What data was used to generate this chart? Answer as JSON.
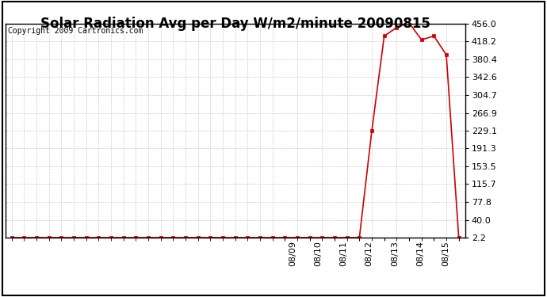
{
  "title": "Solar Radiation Avg per Day W/m2/minute 20090815",
  "copyright": "Copyright 2009 Cartronics.com",
  "background_color": "#ffffff",
  "plot_bg_color": "#ffffff",
  "grid_color": "#cccccc",
  "line_color": "#cc0000",
  "marker_color": "#cc0000",
  "x_values": [
    0,
    1,
    2,
    3,
    4,
    5,
    6,
    7,
    8,
    9,
    10,
    11,
    12,
    13,
    14,
    15,
    16,
    17,
    18,
    19,
    20,
    21,
    22,
    23,
    24,
    25,
    26,
    27,
    28,
    29,
    30,
    31,
    32,
    33,
    34,
    35,
    36
  ],
  "y_values": [
    2.2,
    2.2,
    2.2,
    2.2,
    2.2,
    2.2,
    2.2,
    2.2,
    2.2,
    2.2,
    2.2,
    2.2,
    2.2,
    2.2,
    2.2,
    2.2,
    2.2,
    2.2,
    2.2,
    2.2,
    2.2,
    2.2,
    2.2,
    2.2,
    2.2,
    2.2,
    2.2,
    2.2,
    2.2,
    229.1,
    430.0,
    448.0,
    458.0,
    422.0,
    430.0,
    390.0,
    2.2
  ],
  "n_points": 37,
  "date_tick_positions": [
    22,
    24,
    26,
    28,
    30,
    32,
    34,
    36
  ],
  "date_tick_labels": [
    "08/09",
    "08/10",
    "08/11",
    "08/12",
    "08/13",
    "08/14",
    "08/15",
    ""
  ],
  "y_ticks": [
    2.2,
    40.0,
    77.8,
    115.7,
    153.5,
    191.3,
    229.1,
    266.9,
    304.7,
    342.6,
    380.4,
    418.2,
    456.0
  ],
  "ylim": [
    2.2,
    456.0
  ],
  "title_fontsize": 12,
  "tick_fontsize": 8,
  "copyright_fontsize": 7
}
